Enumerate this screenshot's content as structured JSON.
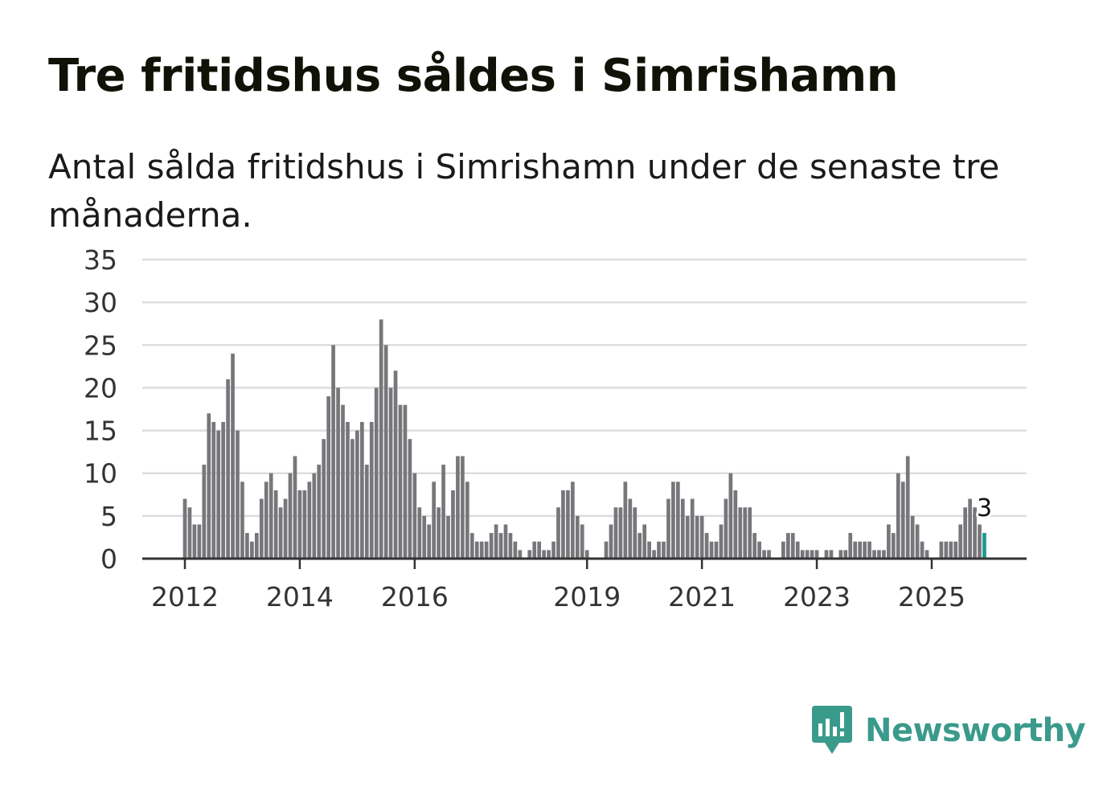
{
  "title": "Tre fritidshus såldes i Simrishamn",
  "subtitle": "Antal sålda fritidshus i Simrishamn under de senaste tre månaderna.",
  "brand": {
    "name": "Newsworthy",
    "color": "#3a9a8b",
    "icon": "newsworthy-bar-chart-icon"
  },
  "colors": {
    "bar": "#77777b",
    "highlight": "#1a9a8e",
    "grid": "#dddddd",
    "axis": "#333333"
  },
  "chart_data": {
    "type": "bar",
    "title": "Tre fritidshus såldes i Simrishamn",
    "subtitle": "Antal sålda fritidshus i Simrishamn under de senaste tre månaderna.",
    "xlabel": "",
    "ylabel": "",
    "ylim": [
      0,
      35
    ],
    "yticks": [
      "0",
      "5",
      "10",
      "15",
      "20",
      "25",
      "30",
      "35"
    ],
    "grid": true,
    "start": "2012-01",
    "xticks": [
      {
        "label": "2012",
        "date": "2012-01"
      },
      {
        "label": "2014",
        "date": "2014-01"
      },
      {
        "label": "2016",
        "date": "2016-01"
      },
      {
        "label": "2019",
        "date": "2019-01"
      },
      {
        "label": "2021",
        "date": "2021-01"
      },
      {
        "label": "2023",
        "date": "2023-01"
      },
      {
        "label": "2025",
        "date": "2025-01"
      }
    ],
    "series": [
      {
        "name": "Antal sålda fritidshus",
        "values": [
          7,
          6,
          4,
          4,
          11,
          17,
          16,
          15,
          16,
          21,
          24,
          15,
          9,
          3,
          2,
          3,
          7,
          9,
          10,
          8,
          6,
          7,
          10,
          12,
          8,
          8,
          9,
          10,
          11,
          14,
          19,
          25,
          20,
          18,
          16,
          14,
          15,
          16,
          11,
          16,
          20,
          28,
          25,
          20,
          22,
          18,
          18,
          14,
          10,
          6,
          5,
          4,
          9,
          6,
          11,
          5,
          8,
          12,
          12,
          9,
          3,
          2,
          2,
          2,
          3,
          4,
          3,
          4,
          3,
          2,
          1,
          0,
          1,
          2,
          2,
          1,
          1,
          2,
          6,
          8,
          8,
          9,
          5,
          4,
          1,
          0,
          0,
          0,
          2,
          4,
          6,
          6,
          9,
          7,
          6,
          3,
          4,
          2,
          1,
          2,
          2,
          7,
          9,
          9,
          7,
          5,
          7,
          5,
          5,
          3,
          2,
          2,
          4,
          7,
          10,
          8,
          6,
          6,
          6,
          3,
          2,
          1,
          1,
          0,
          0,
          2,
          3,
          3,
          2,
          1,
          1,
          1,
          1,
          0,
          1,
          1,
          0,
          1,
          1,
          3,
          2,
          2,
          2,
          2,
          1,
          1,
          1,
          4,
          3,
          10,
          9,
          12,
          5,
          4,
          2,
          1,
          0,
          0,
          2,
          2,
          2,
          2,
          4,
          6,
          7,
          6,
          4,
          3
        ]
      }
    ],
    "highlight_index": 167,
    "annotation": {
      "label": "3",
      "index": 167
    }
  }
}
